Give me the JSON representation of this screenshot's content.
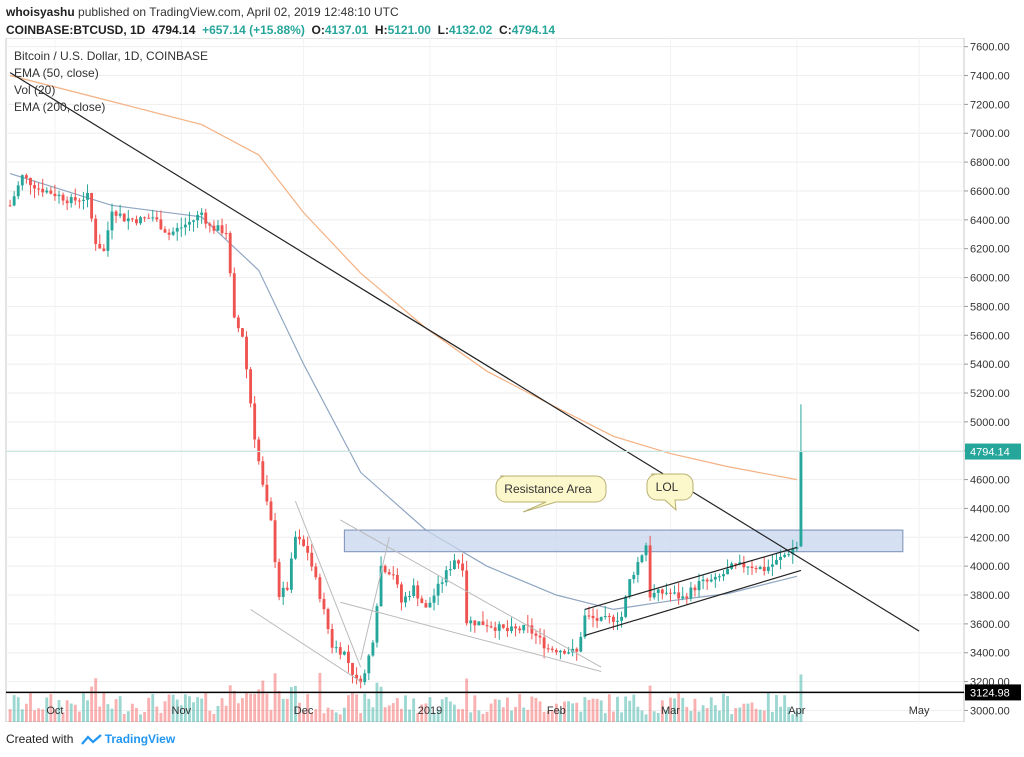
{
  "header": {
    "author": "whoisyashu",
    "published": "published on TradingView.com, April 02, 2019 12:48:10 UTC",
    "symbol": "COINBASE:BTCUSD, 1D",
    "price": "4794.14",
    "change": "+657.14 (+15.88%)",
    "o_label": "O:",
    "o_val": "4137.01",
    "h_label": "H:",
    "h_val": "5121.00",
    "l_label": "L:",
    "l_val": "4132.02",
    "c_label": "C:",
    "c_val": "4794.14"
  },
  "footer": {
    "created_with": "Created with",
    "brand": "TradingView"
  },
  "colors": {
    "up": "#26a69a",
    "down": "#ef5350",
    "ema50": "#8fa6c2",
    "ema200": "#f4b183",
    "zone": "#c7d5ee"
  },
  "chart_data": {
    "type": "candlestick",
    "title": "Bitcoin / U.S. Dollar, 1D, COINBASE",
    "legend": [
      "EMA (50, close)",
      "Vol (20)",
      "EMA (200, close)"
    ],
    "x_ticks": [
      "Oct",
      "Nov",
      "Dec",
      "2019",
      "Feb",
      "Mar",
      "Apr",
      "May"
    ],
    "y_ticks": [
      "7600.00",
      "7400.00",
      "7200.00",
      "7000.00",
      "6800.00",
      "6600.00",
      "6400.00",
      "6200.00",
      "6000.00",
      "5800.00",
      "5600.00",
      "5400.00",
      "5200.00",
      "5000.00",
      "4800.00",
      "4600.00",
      "4400.00",
      "4200.00",
      "4000.00",
      "3800.00",
      "3600.00",
      "3400.00",
      "3200.00",
      "3000.00"
    ],
    "ylim": [
      2920,
      7660
    ],
    "last_price_label": "4794.14",
    "support_label": "3124.98",
    "support_value": 3124.98,
    "resistance_zone": [
      4100,
      4250
    ],
    "annotations": [
      "Resistance Area",
      "LOL"
    ],
    "close_path": [
      [
        "2018-09-20",
        6500
      ],
      [
        "2018-09-23",
        6700
      ],
      [
        "2018-09-27",
        6620
      ],
      [
        "2018-10-01",
        6580
      ],
      [
        "2018-10-05",
        6530
      ],
      [
        "2018-10-09",
        6560
      ],
      [
        "2018-10-11",
        6250
      ],
      [
        "2018-10-13",
        6180
      ],
      [
        "2018-10-15",
        6480
      ],
      [
        "2018-10-18",
        6410
      ],
      [
        "2018-10-22",
        6400
      ],
      [
        "2018-10-25",
        6420
      ],
      [
        "2018-10-29",
        6300
      ],
      [
        "2018-11-01",
        6350
      ],
      [
        "2018-11-04",
        6400
      ],
      [
        "2018-11-06",
        6450
      ],
      [
        "2018-11-08",
        6350
      ],
      [
        "2018-11-12",
        6320
      ],
      [
        "2018-11-14",
        5700
      ],
      [
        "2018-11-16",
        5600
      ],
      [
        "2018-11-19",
        4900
      ],
      [
        "2018-11-21",
        4550
      ],
      [
        "2018-11-23",
        4300
      ],
      [
        "2018-11-25",
        3800
      ],
      [
        "2018-11-27",
        3850
      ],
      [
        "2018-11-29",
        4200
      ],
      [
        "2018-12-02",
        4100
      ],
      [
        "2018-12-05",
        3800
      ],
      [
        "2018-12-08",
        3450
      ],
      [
        "2018-12-11",
        3400
      ],
      [
        "2018-12-14",
        3200
      ],
      [
        "2018-12-16",
        3250
      ],
      [
        "2018-12-18",
        3500
      ],
      [
        "2018-12-20",
        4000
      ],
      [
        "2018-12-23",
        3950
      ],
      [
        "2018-12-25",
        3750
      ],
      [
        "2018-12-28",
        3850
      ],
      [
        "2018-12-31",
        3700
      ],
      [
        "2019-01-03",
        3850
      ],
      [
        "2019-01-07",
        4050
      ],
      [
        "2019-01-09",
        4000
      ],
      [
        "2019-01-10",
        3620
      ],
      [
        "2019-01-15",
        3600
      ],
      [
        "2019-01-20",
        3550
      ],
      [
        "2019-01-25",
        3570
      ],
      [
        "2019-01-30",
        3430
      ],
      [
        "2019-02-03",
        3420
      ],
      [
        "2019-02-06",
        3400
      ],
      [
        "2019-02-08",
        3650
      ],
      [
        "2019-02-12",
        3620
      ],
      [
        "2019-02-17",
        3650
      ],
      [
        "2019-02-19",
        3900
      ],
      [
        "2019-02-23",
        4150
      ],
      [
        "2019-02-24",
        3800
      ],
      [
        "2019-02-28",
        3820
      ],
      [
        "2019-03-04",
        3780
      ],
      [
        "2019-03-08",
        3880
      ],
      [
        "2019-03-12",
        3900
      ],
      [
        "2019-03-16",
        3990
      ],
      [
        "2019-03-20",
        4010
      ],
      [
        "2019-03-24",
        3980
      ],
      [
        "2019-03-27",
        4030
      ],
      [
        "2019-03-30",
        4100
      ],
      [
        "2019-04-01",
        4137
      ],
      [
        "2019-04-02",
        4794.14
      ]
    ],
    "last_candle": {
      "date": "2019-04-02",
      "open": 4137.01,
      "high": 5121.0,
      "low": 4132.02,
      "close": 4794.14
    },
    "ema50": [
      [
        "2018-09-20",
        6720
      ],
      [
        "2018-10-15",
        6500
      ],
      [
        "2018-11-06",
        6420
      ],
      [
        "2018-11-20",
        6050
      ],
      [
        "2018-12-01",
        5400
      ],
      [
        "2018-12-15",
        4650
      ],
      [
        "2018-12-31",
        4250
      ],
      [
        "2019-01-15",
        4000
      ],
      [
        "2019-02-01",
        3800
      ],
      [
        "2019-02-15",
        3700
      ],
      [
        "2019-03-01",
        3760
      ],
      [
        "2019-03-15",
        3810
      ],
      [
        "2019-04-01",
        3930
      ]
    ],
    "ema200": [
      [
        "2018-09-20",
        7400
      ],
      [
        "2018-10-15",
        7220
      ],
      [
        "2018-11-06",
        7060
      ],
      [
        "2018-11-20",
        6850
      ],
      [
        "2018-12-01",
        6450
      ],
      [
        "2018-12-15",
        6030
      ],
      [
        "2018-12-31",
        5650
      ],
      [
        "2019-01-15",
        5350
      ],
      [
        "2019-02-01",
        5100
      ],
      [
        "2019-02-15",
        4900
      ],
      [
        "2019-03-01",
        4780
      ],
      [
        "2019-03-15",
        4690
      ],
      [
        "2019-04-01",
        4600
      ]
    ],
    "trendlines": [
      {
        "from": [
          "2018-09-20",
          7420
        ],
        "to": [
          "2019-05-01",
          3550
        ]
      },
      {
        "from": [
          "2019-02-08",
          3520
        ],
        "to": [
          "2019-04-02",
          3970
        ]
      },
      {
        "from": [
          "2019-02-08",
          3700
        ],
        "to": [
          "2019-04-01",
          4130
        ]
      },
      {
        "from": [
          "2018-11-18",
          3700
        ],
        "to": [
          "2018-12-15",
          3200
        ]
      },
      {
        "from": [
          "2018-11-29",
          4450
        ],
        "to": [
          "2018-12-15",
          3300
        ]
      },
      {
        "from": [
          "2018-12-10",
          4320
        ],
        "to": [
          "2019-02-12",
          3300
        ]
      },
      {
        "from": [
          "2018-12-15",
          3350
        ],
        "to": [
          "2018-12-22",
          4200
        ]
      },
      {
        "from": [
          "2018-12-10",
          3750
        ],
        "to": [
          "2019-02-12",
          3270
        ]
      }
    ]
  }
}
